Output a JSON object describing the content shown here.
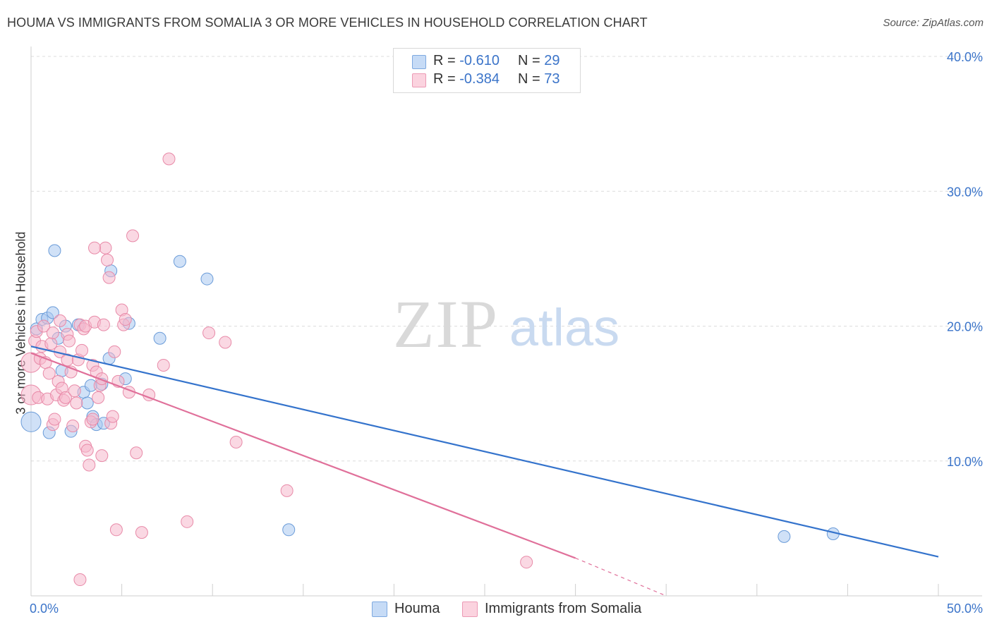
{
  "header": {
    "title": "HOUMA VS IMMIGRANTS FROM SOMALIA 3 OR MORE VEHICLES IN HOUSEHOLD CORRELATION CHART",
    "source": "Source: ZipAtlas.com"
  },
  "watermark": {
    "zip": "ZIP",
    "atlas": "atlas"
  },
  "legend": {
    "rows": [
      {
        "r_label": "R =",
        "r_value": "-0.610",
        "n_label": "N =",
        "n_value": "29",
        "color": "#a9c8f0"
      },
      {
        "r_label": "R =",
        "r_value": "-0.384",
        "n_label": "N =",
        "n_value": "73",
        "color": "#f6b8cc"
      }
    ]
  },
  "bottom_legend": [
    {
      "label": "Houma",
      "color": "#a9c8f0"
    },
    {
      "label": "Immigrants from Somalia",
      "color": "#f6b8cc"
    }
  ],
  "chart_data": {
    "type": "scatter",
    "title": "HOUMA VS IMMIGRANTS FROM SOMALIA 3 OR MORE VEHICLES IN HOUSEHOLD CORRELATION CHART",
    "xlabel": "",
    "ylabel": "3 or more Vehicles in Household",
    "xlim": [
      0,
      50
    ],
    "ylim": [
      0,
      40
    ],
    "x_tick_labels": [
      "0.0%",
      "50.0%"
    ],
    "y_tick_labels": [
      "10.0%",
      "20.0%",
      "30.0%",
      "40.0%"
    ],
    "y_ticks": [
      10,
      20,
      30,
      40
    ],
    "grid": true,
    "series": [
      {
        "name": "Houma",
        "color": "#a9c8f0",
        "stroke": "#6a9bd8",
        "trend_color": "#3473cc",
        "trend": {
          "x": [
            0,
            50
          ],
          "y": [
            18.5,
            2.9
          ]
        },
        "points": [
          [
            0.0,
            12.9
          ],
          [
            0.3,
            19.8
          ],
          [
            0.6,
            20.5
          ],
          [
            0.9,
            20.6
          ],
          [
            1.0,
            12.1
          ],
          [
            1.2,
            21.0
          ],
          [
            1.3,
            25.6
          ],
          [
            1.5,
            19.1
          ],
          [
            1.7,
            16.7
          ],
          [
            1.9,
            20.0
          ],
          [
            2.2,
            12.2
          ],
          [
            2.6,
            20.1
          ],
          [
            2.9,
            15.1
          ],
          [
            3.1,
            14.3
          ],
          [
            3.3,
            15.6
          ],
          [
            3.4,
            13.3
          ],
          [
            3.6,
            12.7
          ],
          [
            3.9,
            15.7
          ],
          [
            4.0,
            12.8
          ],
          [
            4.3,
            17.6
          ],
          [
            4.4,
            24.1
          ],
          [
            5.2,
            16.1
          ],
          [
            5.4,
            20.2
          ],
          [
            7.1,
            19.1
          ],
          [
            8.2,
            24.8
          ],
          [
            9.7,
            23.5
          ],
          [
            14.2,
            4.9
          ],
          [
            41.5,
            4.4
          ],
          [
            44.2,
            4.6
          ]
        ]
      },
      {
        "name": "Immigrants from Somalia",
        "color": "#f6b8cc",
        "stroke": "#e88aa8",
        "trend_color": "#e0709a",
        "trend": {
          "x": [
            0,
            30
          ],
          "y": [
            18.0,
            2.8
          ]
        },
        "trend_dashed": {
          "x": [
            30,
            35
          ],
          "y": [
            2.8,
            0.0
          ]
        },
        "points": [
          [
            0.0,
            14.9
          ],
          [
            0.0,
            17.3
          ],
          [
            0.2,
            18.9
          ],
          [
            0.3,
            19.6
          ],
          [
            0.4,
            14.7
          ],
          [
            0.5,
            17.6
          ],
          [
            0.6,
            18.5
          ],
          [
            0.7,
            20.0
          ],
          [
            0.8,
            17.3
          ],
          [
            0.9,
            14.6
          ],
          [
            1.0,
            16.5
          ],
          [
            1.1,
            18.7
          ],
          [
            1.2,
            19.5
          ],
          [
            1.2,
            12.7
          ],
          [
            1.3,
            13.1
          ],
          [
            1.4,
            14.9
          ],
          [
            1.5,
            15.9
          ],
          [
            1.6,
            18.1
          ],
          [
            1.6,
            20.4
          ],
          [
            1.7,
            15.4
          ],
          [
            1.8,
            14.5
          ],
          [
            1.9,
            14.7
          ],
          [
            2.0,
            17.5
          ],
          [
            2.0,
            19.4
          ],
          [
            2.1,
            18.9
          ],
          [
            2.2,
            16.6
          ],
          [
            2.3,
            12.6
          ],
          [
            2.4,
            15.2
          ],
          [
            2.5,
            14.3
          ],
          [
            2.6,
            17.5
          ],
          [
            2.7,
            20.1
          ],
          [
            2.8,
            18.2
          ],
          [
            2.9,
            19.8
          ],
          [
            3.0,
            11.1
          ],
          [
            3.0,
            20.0
          ],
          [
            3.1,
            10.8
          ],
          [
            3.2,
            9.7
          ],
          [
            3.3,
            12.9
          ],
          [
            3.4,
            13.1
          ],
          [
            3.4,
            17.1
          ],
          [
            3.5,
            20.3
          ],
          [
            3.6,
            16.6
          ],
          [
            3.7,
            14.7
          ],
          [
            3.8,
            15.6
          ],
          [
            3.9,
            16.1
          ],
          [
            3.9,
            10.4
          ],
          [
            4.0,
            20.1
          ],
          [
            4.1,
            25.8
          ],
          [
            4.2,
            24.9
          ],
          [
            4.3,
            23.6
          ],
          [
            4.4,
            12.8
          ],
          [
            4.5,
            13.3
          ],
          [
            4.6,
            18.1
          ],
          [
            4.7,
            4.9
          ],
          [
            4.8,
            15.9
          ],
          [
            5.0,
            21.2
          ],
          [
            5.1,
            20.1
          ],
          [
            5.2,
            20.5
          ],
          [
            5.4,
            15.1
          ],
          [
            5.6,
            26.7
          ],
          [
            5.8,
            10.6
          ],
          [
            6.1,
            4.7
          ],
          [
            6.5,
            14.9
          ],
          [
            7.3,
            17.1
          ],
          [
            7.6,
            32.4
          ],
          [
            8.6,
            5.5
          ],
          [
            9.8,
            19.5
          ],
          [
            10.7,
            18.8
          ],
          [
            11.3,
            11.4
          ],
          [
            14.1,
            7.8
          ],
          [
            27.3,
            2.5
          ],
          [
            2.7,
            1.2
          ],
          [
            3.5,
            25.8
          ]
        ]
      }
    ]
  }
}
